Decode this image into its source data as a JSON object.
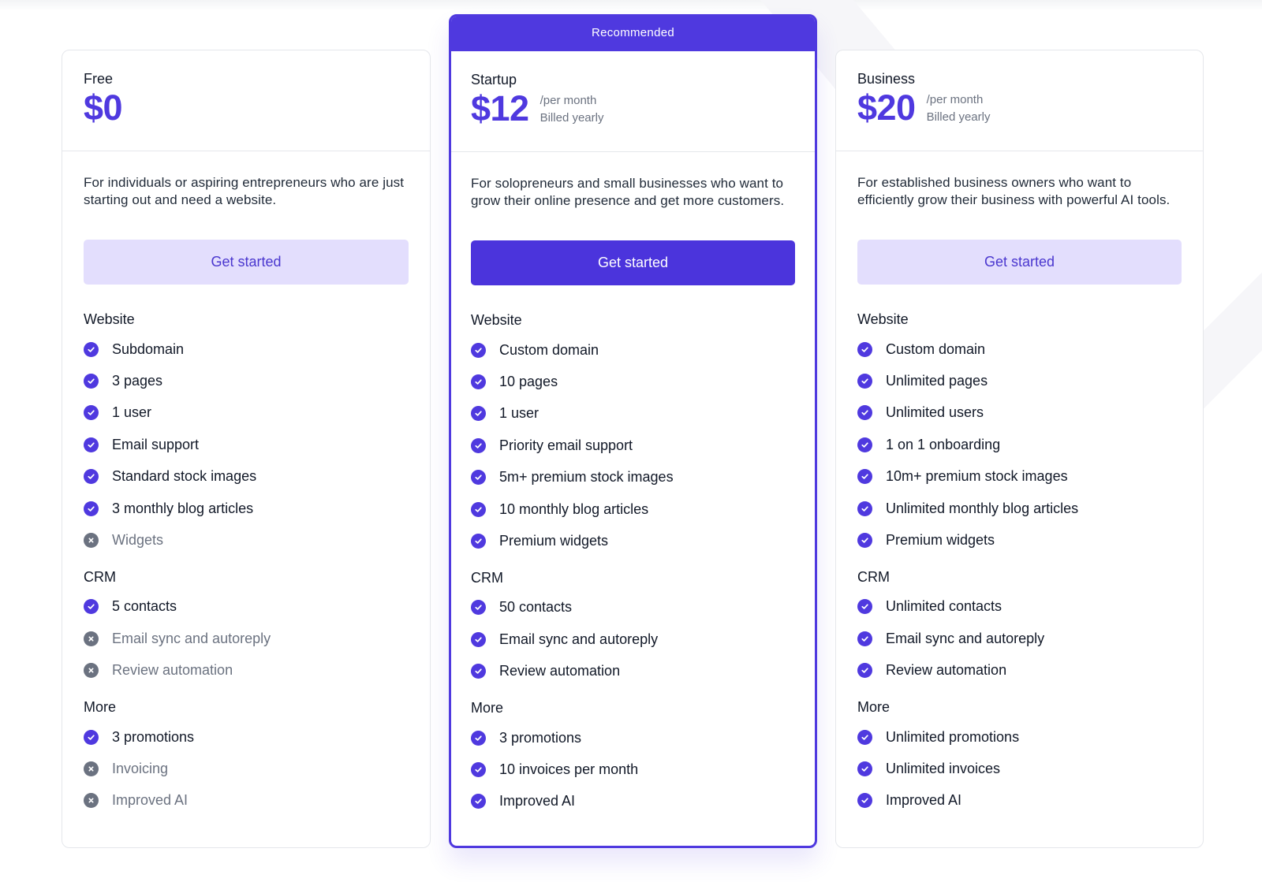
{
  "colors": {
    "accent": "#4f39df",
    "accent_light": "#e3defd",
    "muted": "#6b7280",
    "border": "#e5e7eb"
  },
  "plans": [
    {
      "name": "Free",
      "price": "$0",
      "period": "",
      "billing": "",
      "description": "For individuals or aspiring entrepreneurs who are just starting out and need a website.",
      "cta": "Get started",
      "sections": [
        {
          "title": "Website",
          "features": [
            {
              "label": "Subdomain",
              "included": true
            },
            {
              "label": "3 pages",
              "included": true
            },
            {
              "label": "1 user",
              "included": true
            },
            {
              "label": "Email support",
              "included": true
            },
            {
              "label": "Standard stock images",
              "included": true
            },
            {
              "label": "3 monthly blog articles",
              "included": true
            },
            {
              "label": "Widgets",
              "included": false
            }
          ]
        },
        {
          "title": "CRM",
          "features": [
            {
              "label": "5 contacts",
              "included": true
            },
            {
              "label": "Email sync and autoreply",
              "included": false
            },
            {
              "label": "Review automation",
              "included": false
            }
          ]
        },
        {
          "title": "More",
          "features": [
            {
              "label": "3 promotions",
              "included": true
            },
            {
              "label": "Invoicing",
              "included": false
            },
            {
              "label": "Improved AI",
              "included": false
            }
          ]
        }
      ]
    },
    {
      "name": "Startup",
      "badge": "Recommended",
      "price": "$12",
      "period": "/per month",
      "billing": "Billed yearly",
      "description": "For solopreneurs and small businesses who want to grow their online presence and get more customers.",
      "cta": "Get started",
      "sections": [
        {
          "title": "Website",
          "features": [
            {
              "label": "Custom domain",
              "included": true
            },
            {
              "label": "10 pages",
              "included": true
            },
            {
              "label": "1 user",
              "included": true
            },
            {
              "label": "Priority email support",
              "included": true
            },
            {
              "label": "5m+ premium stock images",
              "included": true
            },
            {
              "label": "10 monthly blog articles",
              "included": true
            },
            {
              "label": "Premium widgets",
              "included": true
            }
          ]
        },
        {
          "title": "CRM",
          "features": [
            {
              "label": "50 contacts",
              "included": true
            },
            {
              "label": "Email sync and autoreply",
              "included": true
            },
            {
              "label": "Review automation",
              "included": true
            }
          ]
        },
        {
          "title": "More",
          "features": [
            {
              "label": "3 promotions",
              "included": true
            },
            {
              "label": "10 invoices per month",
              "included": true
            },
            {
              "label": "Improved AI",
              "included": true
            }
          ]
        }
      ]
    },
    {
      "name": "Business",
      "price": "$20",
      "period": "/per month",
      "billing": "Billed yearly",
      "description": "For established business owners who want to efficiently grow their business with powerful AI tools.",
      "cta": "Get started",
      "sections": [
        {
          "title": "Website",
          "features": [
            {
              "label": "Custom domain",
              "included": true
            },
            {
              "label": "Unlimited pages",
              "included": true
            },
            {
              "label": "Unlimited users",
              "included": true
            },
            {
              "label": "1 on 1 onboarding",
              "included": true
            },
            {
              "label": "10m+ premium stock images",
              "included": true
            },
            {
              "label": "Unlimited monthly blog articles",
              "included": true
            },
            {
              "label": "Premium widgets",
              "included": true
            }
          ]
        },
        {
          "title": "CRM",
          "features": [
            {
              "label": "Unlimited contacts",
              "included": true
            },
            {
              "label": "Email sync and autoreply",
              "included": true
            },
            {
              "label": "Review automation",
              "included": true
            }
          ]
        },
        {
          "title": "More",
          "features": [
            {
              "label": "Unlimited promotions",
              "included": true
            },
            {
              "label": "Unlimited invoices",
              "included": true
            },
            {
              "label": "Improved AI",
              "included": true
            }
          ]
        }
      ]
    }
  ]
}
